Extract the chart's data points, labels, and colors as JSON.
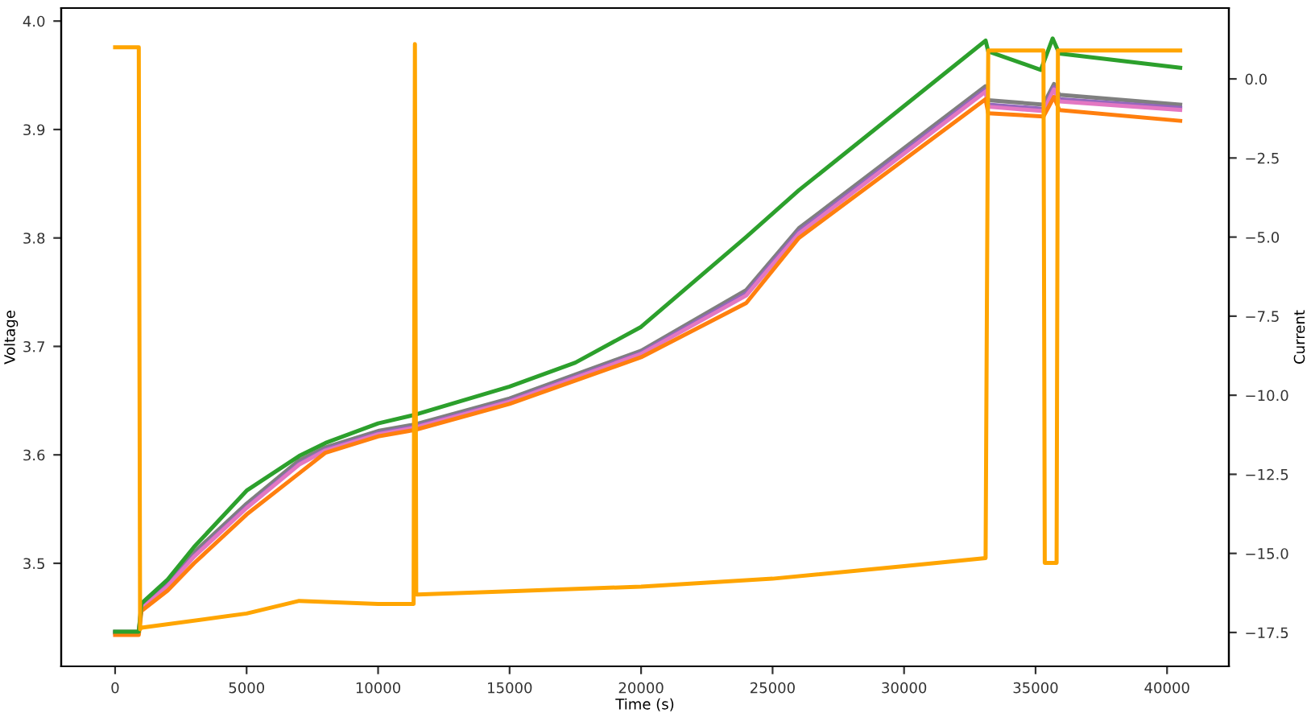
{
  "chart_data": {
    "type": "line",
    "xlabel": "Time (s)",
    "ylabel": "Voltage",
    "y2label": "Current",
    "xlim": [
      -2050,
      42350
    ],
    "xticks": [
      0,
      5000,
      10000,
      15000,
      20000,
      25000,
      30000,
      35000,
      40000
    ],
    "ylim": [
      3.405,
      4.012
    ],
    "yticks": [
      {
        "value": 3.5,
        "label": "3.5"
      },
      {
        "value": 3.6,
        "label": "3.6"
      },
      {
        "value": 3.7,
        "label": "3.7"
      },
      {
        "value": 3.8,
        "label": "3.8"
      },
      {
        "value": 3.9,
        "label": "3.9"
      },
      {
        "value": 4.0,
        "label": "4.0"
      }
    ],
    "y2lim": [
      -18.57,
      2.24
    ],
    "y2ticks": [
      {
        "value": 0,
        "label": "0.0"
      },
      {
        "value": -2.5,
        "label": "−2.5"
      },
      {
        "value": -5,
        "label": "−5.0"
      },
      {
        "value": -7.5,
        "label": "−7.5"
      },
      {
        "value": -10,
        "label": "−10.0"
      },
      {
        "value": -12.5,
        "label": "−12.5"
      },
      {
        "value": -15,
        "label": "−15.0"
      },
      {
        "value": -17.5,
        "label": "−17.5"
      }
    ],
    "grid": false,
    "legend": false,
    "marker": "none",
    "line_style": "solid",
    "series": [
      {
        "color": "#7f7f7f",
        "x": [
          0,
          900,
          1000,
          2000,
          3000,
          5000,
          7000,
          8000,
          10000,
          11400,
          15000,
          20000,
          24000,
          26000,
          33100,
          33200,
          35300,
          35700,
          35900,
          40500
        ],
        "values": [
          3.437,
          3.437,
          3.46,
          3.482,
          3.51,
          3.555,
          3.595,
          3.607,
          3.622,
          3.628,
          3.652,
          3.696,
          3.752,
          3.809,
          3.94,
          3.927,
          3.923,
          3.942,
          3.932,
          3.923
        ]
      },
      {
        "color": "#9467bd",
        "x": [
          0,
          900,
          1000,
          2000,
          3000,
          5000,
          7000,
          8000,
          10000,
          11400,
          15000,
          20000,
          24000,
          26000,
          33100,
          33200,
          35300,
          35700,
          35900,
          40500
        ],
        "values": [
          3.436,
          3.436,
          3.459,
          3.48,
          3.507,
          3.552,
          3.592,
          3.605,
          3.62,
          3.626,
          3.65,
          3.694,
          3.749,
          3.806,
          3.937,
          3.923,
          3.919,
          3.939,
          3.928,
          3.92
        ]
      },
      {
        "color": "#e377c2",
        "x": [
          1000,
          2000,
          3000,
          5000,
          7000,
          8000,
          10000,
          11400,
          15000,
          20000,
          24000,
          26000,
          33100,
          33200,
          35300,
          35700,
          35900,
          40500
        ],
        "values": [
          3.458,
          3.479,
          3.506,
          3.551,
          3.591,
          3.604,
          3.619,
          3.625,
          3.649,
          3.693,
          3.747,
          3.804,
          3.935,
          3.921,
          3.917,
          3.937,
          3.926,
          3.918
        ]
      },
      {
        "color": "#ff7f0e",
        "x": [
          0,
          900,
          1000,
          2000,
          3000,
          5000,
          7000,
          8000,
          10000,
          11400,
          15000,
          20000,
          24000,
          26000,
          33100,
          33200,
          35300,
          35700,
          35900,
          40500
        ],
        "values": [
          3.434,
          3.434,
          3.456,
          3.475,
          3.5,
          3.545,
          3.583,
          3.602,
          3.617,
          3.623,
          3.647,
          3.69,
          3.74,
          3.8,
          3.928,
          3.915,
          3.912,
          3.93,
          3.918,
          3.908
        ]
      },
      {
        "color": "#2ca02c",
        "x": [
          0,
          900,
          1000,
          2000,
          3000,
          5000,
          7000,
          8000,
          10000,
          11400,
          15000,
          17500,
          20000,
          24000,
          26000,
          33100,
          33200,
          35200,
          35650,
          35900,
          40500
        ],
        "values": [
          3.437,
          3.437,
          3.463,
          3.485,
          3.515,
          3.567,
          3.599,
          3.611,
          3.629,
          3.637,
          3.663,
          3.685,
          3.718,
          3.801,
          3.844,
          3.982,
          3.972,
          3.955,
          3.984,
          3.97,
          3.957
        ]
      },
      {
        "color": "#ffa500",
        "axis": "y2",
        "x": [
          0,
          900,
          950,
          1000,
          5000,
          7000,
          10000,
          11350,
          11400,
          11450,
          11500,
          15000,
          20000,
          25000,
          30000,
          33100,
          33200,
          35300,
          35350,
          35800,
          35850,
          40500
        ],
        "values": [
          1.0,
          1.0,
          -17.4,
          -17.35,
          -16.9,
          -16.5,
          -16.6,
          -16.6,
          1.1,
          -16.3,
          -16.3,
          -16.2,
          -16.05,
          -15.8,
          -15.4,
          -15.15,
          0.9,
          0.9,
          -15.3,
          -15.3,
          0.9,
          0.9
        ]
      }
    ]
  }
}
